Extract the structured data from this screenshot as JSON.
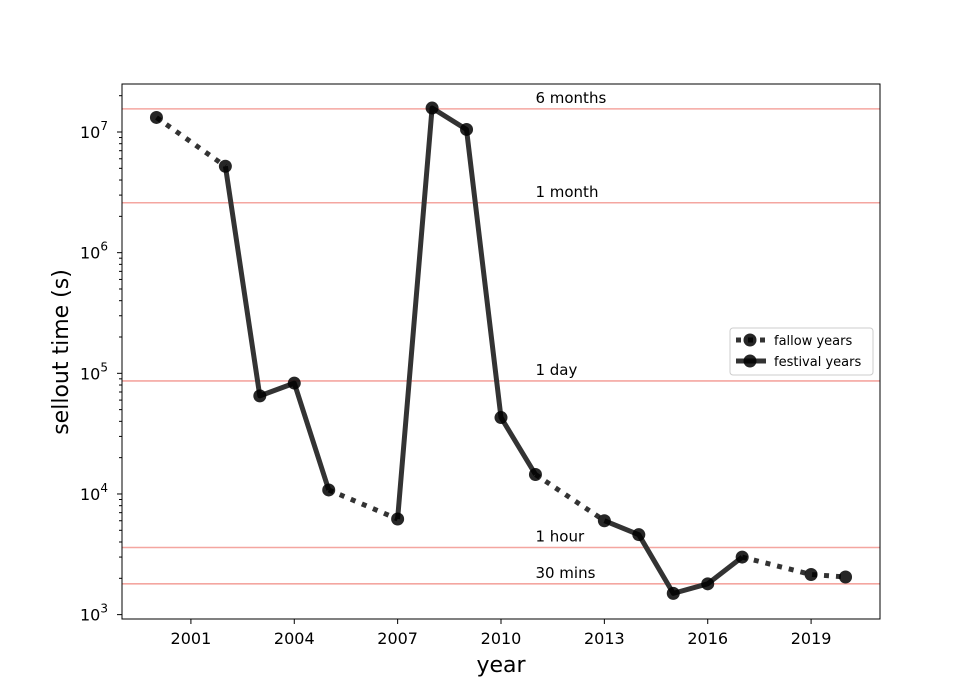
{
  "chart_data": {
    "type": "line",
    "title": "",
    "xlabel": "year",
    "ylabel": "sellout time (s)",
    "xlim": [
      1999.0,
      2021.0
    ],
    "ylim": [
      920,
      25000000
    ],
    "yscale": "log",
    "grid": false,
    "legend_position": "center-right",
    "x_ticks": [
      2001,
      2004,
      2007,
      2010,
      2013,
      2016,
      2019
    ],
    "y_ticks": [
      {
        "value": 1000,
        "mantissa": "10",
        "exponent": "3"
      },
      {
        "value": 10000,
        "mantissa": "10",
        "exponent": "4"
      },
      {
        "value": 100000,
        "mantissa": "10",
        "exponent": "5"
      },
      {
        "value": 1000000,
        "mantissa": "10",
        "exponent": "6"
      },
      {
        "value": 10000000,
        "mantissa": "10",
        "exponent": "7"
      }
    ],
    "reference_lines": [
      {
        "label": "6 months",
        "value": 15552000
      },
      {
        "label": "1 month",
        "value": 2592000
      },
      {
        "label": "1 day",
        "value": 86400
      },
      {
        "label": "1 hour",
        "value": 3600
      },
      {
        "label": "30 mins",
        "value": 1800
      }
    ],
    "reference_color": "#f4a6a0",
    "line_color": "#333333",
    "marker_color": "#000000",
    "series": [
      {
        "name": "fallow years",
        "style": "dotted",
        "segments": [
          [
            [
              2000,
              13200000
            ],
            [
              2002,
              5200000
            ]
          ],
          [
            [
              2005,
              10800
            ],
            [
              2007,
              6200
            ]
          ],
          [
            [
              2011,
              14500
            ],
            [
              2013,
              6000
            ]
          ],
          [
            [
              2017,
              3000
            ],
            [
              2019,
              2150
            ],
            [
              2020,
              2050
            ]
          ]
        ]
      },
      {
        "name": "festival years",
        "style": "solid",
        "segments": [
          [
            [
              2002,
              5200000
            ],
            [
              2003,
              65000
            ],
            [
              2004,
              83000
            ],
            [
              2005,
              10800
            ]
          ],
          [
            [
              2007,
              6200
            ],
            [
              2008,
              15800000
            ],
            [
              2009,
              10500000
            ],
            [
              2010,
              43000
            ],
            [
              2011,
              14500
            ]
          ],
          [
            [
              2013,
              6000
            ],
            [
              2014,
              4600
            ],
            [
              2015,
              1500
            ],
            [
              2016,
              1800
            ],
            [
              2017,
              3000
            ]
          ]
        ]
      }
    ]
  }
}
